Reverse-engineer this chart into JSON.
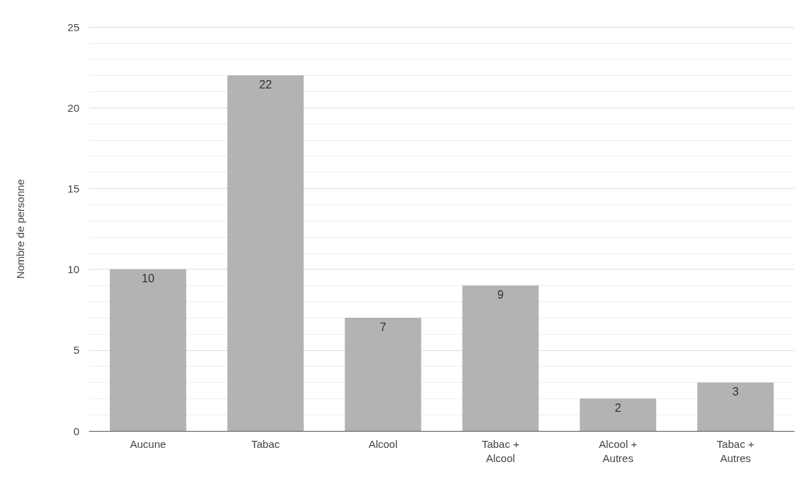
{
  "chart_data": {
    "type": "bar",
    "ylabel": "Nombre de personne",
    "categories": [
      "Aucune",
      "Tabac",
      "Alcool",
      "Tabac +\nAlcool",
      "Alcool +\nAutres",
      "Tabac +\nAutres"
    ],
    "values": [
      10,
      22,
      7,
      9,
      2,
      3
    ],
    "color": "#b3b3b3",
    "ylim": [
      0,
      25
    ],
    "yticks": [
      0,
      5,
      10,
      15,
      20,
      25
    ],
    "grid": "y",
    "data_labels": true
  }
}
